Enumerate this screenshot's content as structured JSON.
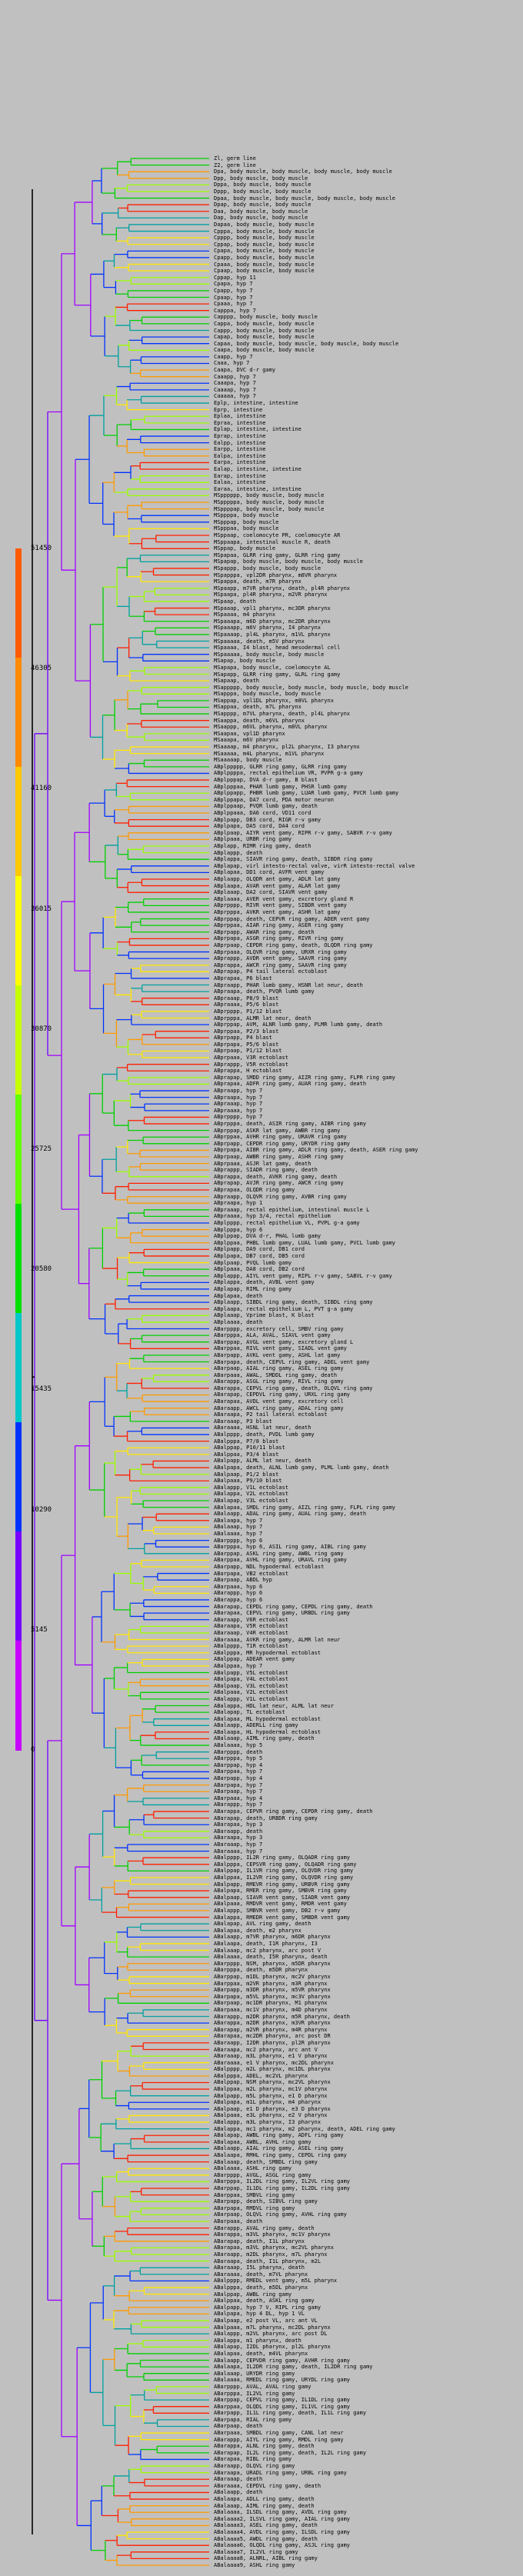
{
  "legend": {
    "title": "",
    "ticks": [
      "51450",
      "46305",
      "41160",
      "36015",
      "30870",
      "25725",
      "20580",
      "15435",
      "10290",
      "5145",
      "0"
    ],
    "colors": [
      "#ff5a00",
      "#ff8a00",
      "#ffc800",
      "#ffff00",
      "#c8ff00",
      "#64ff00",
      "#00e000",
      "#00c8c8",
      "#0032ff",
      "#7800ff",
      "#c800ff"
    ]
  },
  "tree": {
    "colors": {
      "purple": "#a000ff",
      "violet": "#7000ff",
      "blue": "#0032ff",
      "teal": "#00a0a0",
      "green": "#00d000",
      "lime": "#9cff00",
      "yellow": "#ffe800",
      "orange": "#ff9a00",
      "red": "#ff1e00",
      "black": "#000000"
    },
    "leaves": [
      "Zl, germ line",
      "Z2, germ line",
      "Dpa, body muscle, body muscle, body muscle, body muscle",
      "Dpp, body muscle, body muscle",
      "Dppa, body muscle, body muscle",
      "Dppp, body muscle, body muscle",
      "Dpaa, body muscle, body muscle, body muscle, body muscle",
      "Dpap, body muscle, body muscle",
      "Daa, body muscle, body muscle",
      "Dap, body muscle, body muscle",
      "Dapaa, body muscle, body muscle",
      "Cpppa, body muscle, body muscle",
      "Cpppp, body muscle, body muscle",
      "Cppap, body muscle, body muscle",
      "Cpapa, body muscle, body muscle",
      "Cpapp, body muscle, body muscle",
      "Cpaaa, body muscle, body muscle",
      "Cpaap, body muscle, body muscle",
      "Cppap, hyp 11",
      "Cpapa, hyp 7",
      "Cpapp, hyp 7",
      "Cpaap, hyp 7",
      "Cpaaa, hyp 7",
      "Capppa, hyp 7",
      "Capppp, body muscle, body muscle",
      "Cappa, body muscle, body muscle",
      "Cappp, body muscle, body muscle",
      "Capap, body muscle, body muscle",
      "Capaa, body muscle, body muscle, body muscle, body muscle",
      "Caapa, body muscle, body muscle",
      "Caapp, hyp 7",
      "Caaa, hyp 7",
      "Caapa, DVC d-r gamy",
      "Caaapp, hyp 7",
      "Caaapa, hyp 7",
      "Caaaap, hyp 7",
      "Caaaaa, hyp 7",
      "Eplp, intestine, intestine",
      "Eprp, intestine",
      "Eplaa, intestine",
      "Epraa, intestine",
      "Eplap, intestine, intestine",
      "Eprap, intestine",
      "Ealpp, intestine",
      "Earpp, intestine",
      "Ealpa, intestine",
      "Earpa, intestine",
      "Ealap, intestine, intestine",
      "Earap, intestine",
      "Ealaa, intestine",
      "Earaa, intestine, intestine",
      "MSpppppp, body muscle, body muscle",
      "MSpppppa, body muscle, body muscle",
      "MSppppap, body muscle, body muscle",
      "MSppppa, body muscle",
      "MSpppap, body muscle",
      "MSpppaa, body muscle",
      "MSppaap, coelomocyte PR, coelomocyte AR",
      "MSppaapa, intestinal muscle R, death",
      "MSppap, body muscle",
      "MSpapaa, GLRR ring gamy, GLRR ring gamy",
      "MSpapap, body muscle, body muscle, body muscle",
      "MSpappp, body muscle, body muscle",
      "MSpapppa, vpl2DR pharynx, m8VR pharynx",
      "MSpappa, death, m7R pharynx",
      "MSpaapp, m7VR pharynx, death, pl4R pharynx",
      "MSpaapa, pl4R pharynx, m2VR pharynx",
      "MSpaap, death",
      "MSpaaap, vpl1 pharynx, mc3DR pharynx",
      "MSpaaaa, m4 pharynx",
      "MSpaaapa, m6D pharynx, mc2DR pharynx",
      "MSpaaapp, m6V pharynx, I4 pharynx",
      "MSpaaaap, pl4L pharynx, m1VL pharynx",
      "MSpaaaaa, death, m5V pharynx",
      "MSpaaaa, I4 blast, head mesodermal cell",
      "MSpaaaaa, body muscle, body muscle",
      "MSapap, body muscle",
      "MSapapa, body muscle, coelomocyte AL",
      "MSapapp, GLRR ring gamy, GLRL ring gamy",
      "MSapaap, death",
      "MSappppp, body muscle, body muscle, body muscle, body muscle",
      "MSapppa, body muscle, body muscle",
      "MSappap, vpl1DL pharynx, m8VL pharynx",
      "MSappaa, death, m7L pharynx",
      "MSapppp, m7VL pharynx, death, pl4L pharynx",
      "MSaappa, death, m6VL pharynx",
      "MSaappp, m6VL pharynx, m8VL pharynx",
      "MSaapaa, vpl1D pharynx",
      "MSaaapa, m6V pharynx",
      "MSaaaap, m4 pharynx, pl2L pharynx, I3 pharynx",
      "MSaaaaa, m4L pharynx, m1VL pharynx",
      "MSaaaaap, body muscle",
      "ABplppppp, GLRR ring gamy, GLRR ring gamy",
      "ABplppppa, rectal epithelium VR, PVPR g-a gamy",
      "ABplpppap, DVA d-r gamy, B blast",
      "ABplpppaa, PHAR lumb gamy, PHSR lumb gamy",
      "ABplppapp, PHBR lumb gamy, LUAR lumb gamy, PVCR lumb gamy",
      "ABplppapa, DA7 cord, PDA motor neuron",
      "ABplppaap, PVQR lumb gamy, death",
      "ABplppaaa, DA6 cord, VD11 cord",
      "ABplpapp, DB3 cord, RIGR r-v gamy",
      "ABplpapa, DA5 cord, DA4 cord",
      "ABplpaap, AIYR vent gamy, RIPR r-v gamy, SABVR r-v gamy",
      "ABplpaaa, URBR ring gamy",
      "ABplapp, RIMR ring gamy, death",
      "ABplappp, death",
      "ABplappa, SIAVR ring gamy, death, SIBDR ring gamy",
      "ABplapap, virl intesto-rectal valve, virR intesto-rectal valve",
      "ABplapaa, DD1 cord, AVFR vent gamy",
      "ABplaapp, OLQDR ant gamy, ADLR lat gamy",
      "ABplaapa, AVAR vent gamy, ALAR lat gamy",
      "ABplaaap, DA2 cord, SIAVR vent gamy",
      "ABplaaaa, AVER vent gamy, excretory gland R",
      "ABprpppp, RIVR vent gamy, SIBDR vent gamy",
      "ABprpppa, AVKR vent gamy, ASHR lat gamy",
      "ABprppap, death, CEPVR ring gamy, ADER vent gamy",
      "ABprppaa, AIAR ring gamy, ASER ring gamy",
      "ABprpapp, AWAR ring gamy, death",
      "ABprpapa, ASGR ring gamy, RIVR ring gamy",
      "ABprpaap, CEPDR ring gamy, death, OLQDR ring gamy",
      "ABprpaaa, OLQVR ring gamy, URXR ring gamy",
      "ABprappp, AVDR vent gamy, SAAVR ring gamy",
      "ABprappa, AWCR ring gamy, SAAVR ring gamy",
      "ABprapap, P4 tail lateral ectoblast",
      "ABprapaa, P6 blast",
      "ABpraapp, PHAR lumb gamy, HSNR lat neur, death",
      "ABpraapa, death, PVQR lumb gamy",
      "ABpraaap, P8/9 blast",
      "ABpraaaa, P5/6 blast",
      "ABprpppp, P1/12 blast",
      "ABprpppa, ALMR lat neur, death",
      "ABprppap, AVM, ALNR lumb gamy, PLMR lumb gamy, death",
      "ABprppaa, P2/3 blast",
      "ABprpapp, P4 blast",
      "ABprpapa, P5/6 blast",
      "ABprpaap, P1/12 blast",
      "ABprpaaa, V3R ectoblast",
      "ABprappp, V5R ectoblast",
      "ABprappa, H ectoblast",
      "ABprapap, SMDD ring gamy, AIZR ring gamy, FLPR ring gamy",
      "ABprapaa, ADFR ring gamy, AUAR ring gamy, death",
      "ABpraapp, hyp 7",
      "ABpraapa, hyp 7",
      "ABpraaap, hyp 7",
      "ABpraaaa, hyp 7",
      "ABprpppp, hyp 7",
      "ABprpppa, death, ASIR ring gamy, AIBR ring gamy",
      "ABprppap, ASKR lat gamy, AWBR ring gamy",
      "ABprppaa, AVHR ring gamy, URAVR ring gamy",
      "ABprpapp, CEPDR ring gamy, URYDR ring gamy",
      "ABprpapa, AIBR ring gamy, ADLR ring gamy, death, ASER ring gamy",
      "ABprpaap, AWBR ring gamy, ASHR ring gamy",
      "ABprpaaa, ASJR lat gamy, death",
      "ABprappp, SIADR ring gamy, death",
      "ABprappa, death, AVKR ring gamy, death",
      "ABprapap, AVJR ring gamy, AWCR ring gamy",
      "ABprapaa, OLQDR ring gamy",
      "ABpraapp, OLQVR ring gamy, AVBR ring gamy",
      "ABpraapa, hyp 1",
      "ABpraaap, rectal epithelium, intestinal muscle L",
      "ABpraaaa, hyp 3/4, rectal epithelium",
      "ABplpppp, rectal epithelium VL, PVPL g-a gamy",
      "ABplpppa, hyp 6",
      "ABplppap, DVA d-r, PHAL lumb gamy",
      "ABplppaa, PHBL lumb gamy, LUAL lumb gamy, PVCL lumb gamy",
      "ABplpapp, DA9 cord, DB1 cord",
      "ABplpapa, DB7 cord, DB5 cord",
      "ABplpaap, PVQL lumb gamy",
      "ABplpaaa, DA8 cord, DB2 cord",
      "ABplappp, AIYL vent gamy, RIPL r-v gamy, SABVL r-v gamy",
      "ABplappa, death, AVBL vent gamy",
      "ABplapap, RIML ring gamy",
      "ABplapaa, death",
      "ABplaapp, SIBDL ring gamy, death, SIBDL ring gamy",
      "ABplaapa, rectal epithelium L, PVT g-a gamy",
      "ABplaaap, Vprime blast, K blast",
      "ABplaaaa, death",
      "ABarpppp, excretory cell, SMBV ring gamy",
      "ABarpppa, ALA, AVAL, SIAVL vent gamy",
      "ABarppap, AVGL vent gamy, excretory gland L",
      "ABarppaa, RIVL vent gamy, SIADL vent gamy",
      "ABarpapp, AVKL vent gamy, ASHL lat gamy",
      "ABarpapa, death, CEPVL ring gamy, ADEL vent gamy",
      "ABarpaap, AIAL ring gamy, ASEL ring gamy",
      "ABarpaaa, AWAL, SMDDL ring gamy, death",
      "ABarappp, ASGL ring gamy, RIVL ring gamy",
      "ABarappa, CEPVL ring gamy, death, OLQVL ring gamy",
      "ABarapap, CEPDVL ring gamy, URXL ring gamy",
      "ABarapaa, AVDL vent gamy, excretory cell",
      "ABaraapp, AWCL ring gamy, ADAL ring gamy",
      "ABaraapa, P2 tail lateral ectoblast",
      "ABaraaap, P3 blast",
      "ABaraaaa, HSNL lat neur, death",
      "ABalpppp, death, PVDL lumb gamy",
      "ABalpppa, P7/8 blast",
      "ABalppap, P10/11 blast",
      "ABalppaa, P3/4 blast",
      "ABalpapp, ALML lat neur, death",
      "ABalpapa, death, ALNL lumb gamy, PLML lumb gamy, death",
      "ABalpaap, P1/2 blast",
      "ABalpaaa, P9/10 blast",
      "ABalappp, V1L ectoblast",
      "ABalappa, V2L ectoblast",
      "ABalapap, V3L ectoblast",
      "ABalapaa, SMDL ring gamy, AIZL ring gamy, FLPL ring gamy",
      "ABalaapp, ADAL ring gamy, AUAL ring gamy, death",
      "ABalaapa, hyp 7",
      "ABalaaap, hyp 7",
      "ABalaaaa, hyp 7",
      "ABarpppp, hyp 6",
      "ABarpppa, hyp 6, ASIL ring gamy, AIBL ring gamy",
      "ABarppap, ASKL ring gamy, AWBL ring gamy",
      "ABarppaa, AVHL ring gamy, URAVL ring gamy",
      "ABarpapp, NDL hypodermal ectoblast",
      "ABarpapa, VB2 ectoblast",
      "ABarpaap, ABDL hyp",
      "ABarpaaa, hyp 6",
      "ABarappp, hyp 6",
      "ABarappa, hyp 6",
      "ABarapap, CEPDL ring gamy, CEPDL ring gamy, death",
      "ABarapaa, CEPVL ring gamy, URBDL ring gamy",
      "ABaraapp, V6R ectoblast",
      "ABaraapa, V5R ectoblast",
      "ABaraaap, V4R ectoblast",
      "ABaraaaa, AVKR ring gamy, ALMR lat neur",
      "ABalpppp, T1R ectoblast",
      "ABalpppa, MR hypodermal ectoblast",
      "ABalppap, ADEAR vent gamy",
      "ABalppaa, hyp 7",
      "ABalpapp, V5L ectoblast",
      "ABalpapa, V4L ectoblast",
      "ABalpaap, V3L ectoblast",
      "ABalpaaa, V2L ectoblast",
      "ABalappp, V1L ectoblast",
      "ABalappa, HDL lat neur, ALML lat neur",
      "ABalapap, TL ectoblast",
      "ABalapaa, ML hypodermal ectoblast",
      "ABalaapp, ADERLL ring gamy",
      "ABalaapa, HL hypodermal ectoblast",
      "ABalaaap, AIML ring gamy, death",
      "ABalaaaa, hyp 5",
      "ABarpppp, death",
      "ABarpppa, hyp 5",
      "ABarppap, hyp 4",
      "ABarppaa, hyp 7",
      "ABarpapp, hyp 4",
      "ABarpapa, hyp 7",
      "ABarpaap, hyp 7",
      "ABarpaaa, hyp 4",
      "ABarappp, hyp 7",
      "ABarappa, CEPVR ring gamy, CEPDR ring gamy, death",
      "ABarapap, death, URBDR ring gamy",
      "ABarapaa, hyp 3",
      "ABaraapp, death",
      "ABaraapa, hyp 3",
      "ABaraaap, hyp 7",
      "ABaraaaa, hyp 7",
      "ABalpppp, IL2R ring gamy, OLQADR ring gamy",
      "ABalpppa, CEPSVR ring gamy, OLQADR ring gamy",
      "ABalppap, IL1VR ring gamy, OLQVDR ring gamy",
      "ABalppaa, IL2VR ring gamy, OLQVDR ring gamy",
      "ABalpapp, RMEVR ring gamy, URBVR ring gamy",
      "ABalpapa, RMER ring gamy, SMBVR ring gamy",
      "ABalpaap, SIAVR vent gamy, SIADR vent gamy",
      "ABalpaaa, RMDVR vent gamy, RMDR vent gamy",
      "ABalappp, SMBVR vent gamy, DB2 r-v gamy",
      "ABalappa, RMEDR vent gamy, SMBDR vent gamy",
      "ABalapap, AVL ring gamy, death",
      "ABalapaa, death, m2 pharynx",
      "ABalaapp, m7VR pharynx, m6DR pharynx",
      "ABalaapa, death, I1R pharynx, I3",
      "ABalaaap, mc2 pharynx, arc post V",
      "ABalaaaa, death, I5R pharynx, death",
      "ABarpppp, NSM, pharynx, m5DR pharynx",
      "ABarpppa, death, m5DR pharynx",
      "ABarppap, m1DL pharynx, mc2V pharynx",
      "ABarppaa, m2VR pharynx, m3R pharynx",
      "ABarpapp, m3DR pharynx, m5VR pharynx",
      "ABarpapa, m5VL pharynx, mc3V pharynx",
      "ABarpaap, mc1DR pharynx, M1 pharynx",
      "ABarpaaa, mc1V pharynx, m4D pharynx",
      "ABarappp, m2DR pharynx, m5R pharynx, death",
      "ABarappa, m2DR pharynx, m3VR pharynx",
      "ABarapap, m2VR pharynx, m4R pharynx",
      "ABarapaa, mc2DR pharynx, arc post DR",
      "ABaraapp, I2DR pharynx, pl2R pharynx",
      "ABaraapa, mc2 pharynx, arc ant V",
      "ABaraaap, m3L pharynx, e1 V pharynx",
      "ABaraaaa, e1 V pharynx, mc2DL pharynx",
      "ABalpppp, m2L pharynx, mc1DL pharynx",
      "ABalpppa, ADEL, mc2VL pharynx",
      "ABalppap, NSM pharynx, mc2VL pharynx",
      "ABalppaa, m2L pharynx, mc1V pharynx",
      "ABalpapp, m5L pharynx, e1 D pharynx",
      "ABalpapa, m1L pharynx, m4 pharynx",
      "ABalpaap, e1 D pharynx, e3 D pharynx",
      "ABalpaaa, e3L pharynx, e2 V pharynx",
      "ABalappp, m3L pharynx, I3 pharynx",
      "ABalappa, mc1 pharynx, m2 pharynx, death, ADEL ring gamy",
      "ABalapap, AWBL ring gamy, ADFL ring gamy",
      "ABalapaa, AWBL, AVHL ring gamy",
      "ABalaapp, AIAL ring gamy, ASEL ring gamy",
      "ABalaapa, RMHL ring gamy, CEPDL ring gamy",
      "ABalaaap, death, SMBDL ring gamy",
      "ABalaaaa, ASHL ring gamy",
      "ABarpppp, AVGL, ASGL ring gamy",
      "ABarpppa, IL2DL ring gamy, IL2VL ring gamy",
      "ABarppap, IL1DL ring gamy, IL2DL ring gamy",
      "ABarppaa, SMBVL ring gamy",
      "ABarpapp, death, SIBVL ring gamy",
      "ABarpapa, RMDVL ring gamy",
      "ABarpaap, OLQVL ring gamy, AVHL ring gamy",
      "ABarpaaa, death",
      "ABarappp, AVAL ring gamy, death",
      "ABarappa, m3VL pharynx, mc1V pharynx",
      "ABarapap, death, I1L pharynx",
      "ABarapaa, m3VL pharynx, mc2VL pharynx",
      "ABaraapp, m2DL pharynx, m7L pharynx",
      "ABaraapa, death, I1L pharynx, m2L",
      "ABaraaap, I5L pharynx, death",
      "ABaraaaa, death, m7VL pharynx",
      "ABalpppp, RMEDL vent gamy, m5L pharynx",
      "ABalpppa, death, m5DL pharynx",
      "ABalppap, AWBL ring gamy",
      "ABalppaa, death, ASKL ring gamy",
      "ABalpapp, hyp 7 V, RIPL ring gamy",
      "ABalpapa, hyp 4 DL, hyp 1 VL",
      "ABalpaap, e2 post VL, arc ant VL",
      "ABalpaaa, m7L pharynx, mc2DL pharynx",
      "ABalappp, m2VL pharynx, arc post DL",
      "ABalappa, m1 pharynx, death",
      "ABalapap, I2DL pharynx, pl2L pharynx",
      "ABalapaa, death, m4VL pharynx",
      "ABalaapp, CEPVDR ring gamy, AVHR ring gamy",
      "ABalaapa, IL2DR ring gamy, death, IL2DR ring gamy",
      "ABalaaap, URYDR ring gamy",
      "ABalaaaa, RMEDL ring gamy, URYDL ring gamy",
      "ABarpppp, AVAL, AVAL ring gamy",
      "ABarpppa, IL2VL ring gamy",
      "ABarppap, CEPVL ring gamy, IL1DL ring gamy",
      "ABarppaa, OLQDL ring gamy, IL1VL ring gamy",
      "ABarpapp, IL1L ring gamy, death, IL1L ring gamy",
      "ABarpapa, RIAL ring gamy",
      "ABarpaap, death",
      "ABarpaaa, SMBDL ring gamy, CANL lat neur",
      "ABarappp, AIYL ring gamy, RMDL ring gamy",
      "ABarappa, ALNL ring gamy, death",
      "ABarapap, IL2L ring gamy, death, IL2L ring gamy",
      "ABarapaa, RIBL ring gamy",
      "ABaraapp, OLQVL ring gamy",
      "ABaraapa, URADL ring gamy, URBL ring gamy",
      "ABaraaap, death",
      "ABaraaaa, CEPDVL ring gamy, death",
      "ABalaapp, death",
      "ABalaapa, ADLL ring gamy, death",
      "ABalaaap, AIML ring gamy, death",
      "ABalaaaa, ILSDL ring gamy, AVDL ring gamy",
      "ABalaaaa2, ILSVL ring gamy, AIAL ring gamy",
      "ABalaaaa3, ASEL ring gamy, death",
      "ABalaaaa4, AVDL ring gamy, ILSDL ring gamy",
      "ABalaaaa5, AWDL ring gamy, death",
      "ABalaaaa6, OLQDL ring gamy, ASJL ring gamy",
      "ABalaaaa7, IL2VL ring gamy",
      "ABalaaaa8, ALNRL, AIBL ring gamy",
      "ABalaaaa9, ASHL ring gamy"
    ]
  }
}
